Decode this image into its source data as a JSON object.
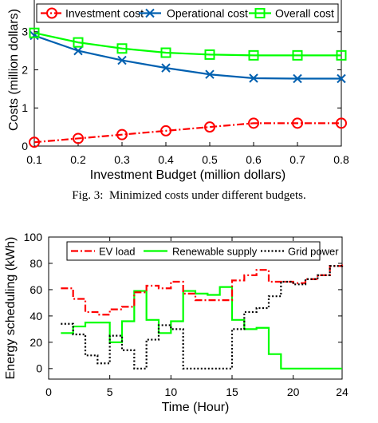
{
  "caption": {
    "label": "Fig. 3:",
    "text": "Minimized costs under different budgets."
  },
  "chart_data": [
    {
      "type": "line",
      "title": "",
      "xlabel": "Investment Budget (million dollars)",
      "ylabel": "Costs (million dollars)",
      "xlim": [
        0.1,
        0.8
      ],
      "ylim": [
        0,
        4
      ],
      "xticks": [
        0.1,
        0.2,
        0.3,
        0.4,
        0.5,
        0.6,
        0.7,
        0.8
      ],
      "yticks": [
        0,
        1,
        2,
        3,
        4
      ],
      "grid": false,
      "legend": "top, horizontal",
      "x": [
        0.1,
        0.2,
        0.3,
        0.4,
        0.5,
        0.6,
        0.7,
        0.8
      ],
      "series": [
        {
          "name": "Investment cost",
          "color": "#ff0000",
          "line": "dashdot",
          "marker": "circle",
          "values": [
            0.1,
            0.2,
            0.3,
            0.4,
            0.5,
            0.6,
            0.6,
            0.6
          ]
        },
        {
          "name": "Operational cost",
          "color": "#0060b0",
          "line": "solid",
          "marker": "x",
          "values": [
            2.9,
            2.5,
            2.25,
            2.05,
            1.88,
            1.78,
            1.77,
            1.77
          ]
        },
        {
          "name": "Overall cost",
          "color": "#00ff00",
          "line": "solid",
          "marker": "square",
          "values": [
            2.97,
            2.72,
            2.56,
            2.45,
            2.4,
            2.38,
            2.38,
            2.38
          ]
        }
      ]
    },
    {
      "type": "line",
      "title": "",
      "xlabel": "Time (Hour)",
      "ylabel": "Energy scheduling (kWh)",
      "xlim": [
        0,
        24
      ],
      "ylim": [
        -8,
        100
      ],
      "xticks": [
        0,
        5,
        10,
        15,
        20,
        24
      ],
      "yticks": [
        0,
        20,
        40,
        60,
        80,
        100
      ],
      "grid": false,
      "legend": "top-right, horizontal",
      "step": true,
      "series": [
        {
          "name": "EV load",
          "color": "#ff0000",
          "line": "dashdot",
          "x": [
            1,
            2,
            3,
            4,
            5,
            6,
            7,
            8,
            9,
            10,
            11,
            12,
            13,
            14,
            15,
            16,
            17,
            18,
            19,
            20,
            21,
            22,
            23,
            24
          ],
          "values": [
            61,
            53,
            43,
            41,
            45,
            47,
            58,
            63,
            61,
            66,
            57,
            52,
            52,
            52,
            67,
            71,
            75,
            66,
            66,
            65,
            68,
            71,
            78,
            79
          ]
        },
        {
          "name": "Renewable supply",
          "color": "#00ff00",
          "line": "solid",
          "x": [
            1,
            2,
            3,
            4,
            5,
            6,
            7,
            8,
            9,
            10,
            11,
            12,
            13,
            14,
            15,
            16,
            17,
            18,
            19,
            20,
            21,
            22,
            23,
            24
          ],
          "values": [
            27,
            32,
            35,
            35,
            20,
            36,
            59,
            37,
            27,
            36,
            59,
            57,
            56,
            62,
            37,
            30,
            31,
            11,
            0,
            0,
            0,
            0,
            0,
            0
          ]
        },
        {
          "name": "Grid power",
          "color": "#000000",
          "line": "dotted",
          "x": [
            1,
            2,
            3,
            4,
            5,
            6,
            7,
            8,
            9,
            10,
            11,
            12,
            13,
            14,
            15,
            16,
            17,
            18,
            19,
            20,
            21,
            22,
            23,
            24
          ],
          "values": [
            34,
            26,
            10,
            4,
            25,
            14,
            0,
            22,
            33,
            30,
            0,
            0,
            0,
            0,
            30,
            43,
            46,
            55,
            66,
            64,
            68,
            71,
            78,
            79
          ]
        }
      ]
    }
  ]
}
